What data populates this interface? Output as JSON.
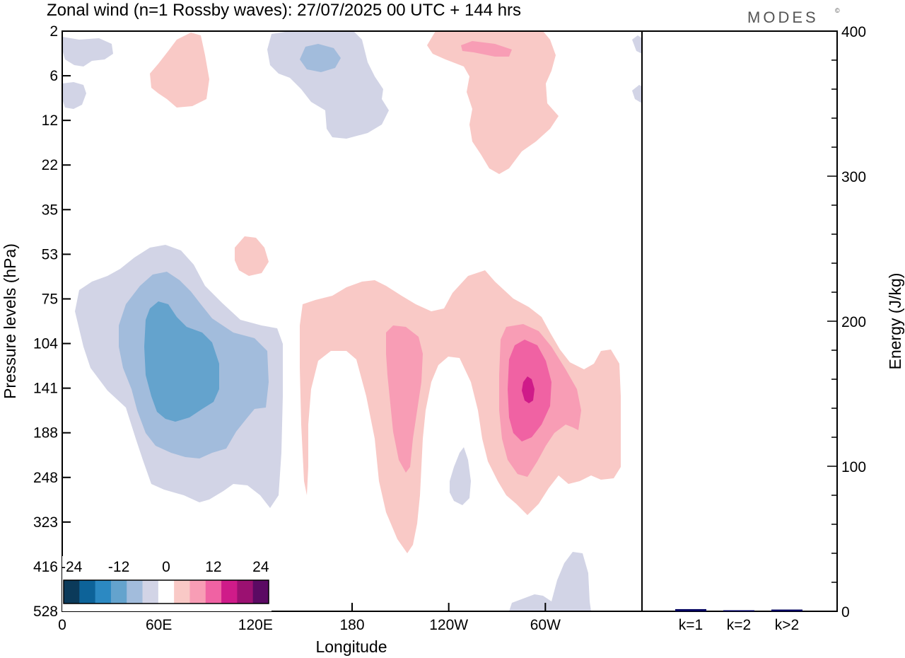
{
  "title": "Zonal wind (n=1 Rossby waves):  27/07/2025  00 UTC  + 144 hrs",
  "brand": "MODES",
  "brand_mark": "©",
  "chart_data": [
    {
      "type": "heatmap",
      "subtype": "filled-contour",
      "title": "Zonal wind (n=1 Rossby waves):  27/07/2025  00 UTC  + 144 hrs",
      "xlabel": "Longitude",
      "ylabel": "Pressure levels (hPa)",
      "x_ticks": [
        "0",
        "60E",
        "120E",
        "180",
        "120W",
        "60W"
      ],
      "x_tick_degrees": [
        0,
        60,
        120,
        180,
        240,
        300
      ],
      "x_range": [
        0,
        360
      ],
      "y_ticks": [
        "2",
        "6",
        "12",
        "22",
        "35",
        "53",
        "75",
        "104",
        "141",
        "188",
        "248",
        "323",
        "416",
        "528"
      ],
      "colorbar": {
        "labels": [
          "-24",
          "-12",
          "0",
          "12",
          "24"
        ],
        "levels": [
          -24,
          -20,
          -16,
          -12,
          -8,
          -4,
          0,
          4,
          8,
          12,
          16,
          20,
          24
        ],
        "colors": [
          "#0b3a5a",
          "#0d6399",
          "#2c89c2",
          "#64a3cd",
          "#a2bcdc",
          "#d2d4e6",
          "#ffffff",
          "#f9c9c6",
          "#f89db5",
          "#f062a3",
          "#cf1b89",
          "#9b1171",
          "#5b0a63"
        ]
      },
      "regions": [
        {
          "name": "negative-wave-60E",
          "lon_center": 70,
          "pressure_center": "141",
          "min_value": -16
        },
        {
          "name": "positive-wave-180-150W",
          "lon_center": 210,
          "pressure_center": "141",
          "max_value": 12
        },
        {
          "name": "positive-wave-60W",
          "lon_center": 290,
          "pressure_center": "141",
          "max_value": 20
        },
        {
          "name": "negative-upper-90W",
          "lon_center": 150,
          "pressure_center": "6",
          "min_value": -8
        },
        {
          "name": "positive-upper-120W",
          "lon_center": 270,
          "pressure_center": "6",
          "max_value": 8
        }
      ]
    },
    {
      "type": "bar",
      "title": "",
      "categories": [
        "k=1",
        "k=2",
        "k>2"
      ],
      "values": [
        1.5,
        0.5,
        1.2
      ],
      "ylabel": "Energy (J/kg)",
      "y_ticks": [
        "0",
        "100",
        "200",
        "300",
        "400"
      ],
      "ylim": [
        0,
        400
      ],
      "bar_color": "#000060"
    }
  ]
}
